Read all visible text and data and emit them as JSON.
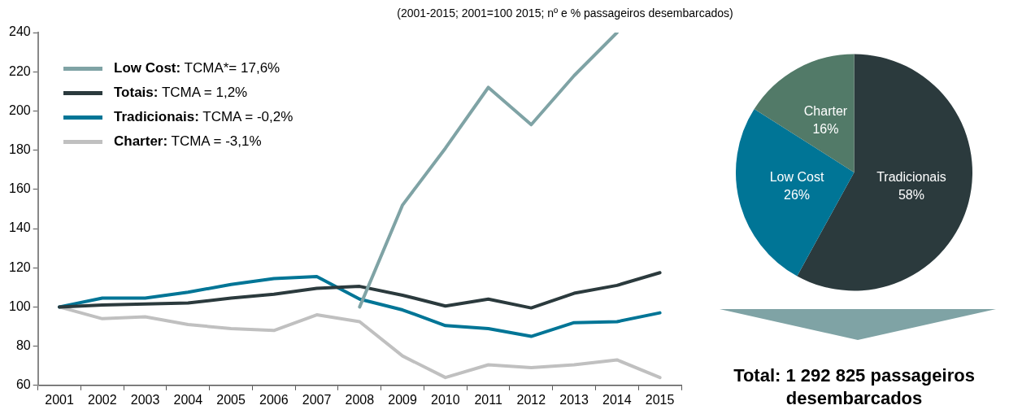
{
  "chart_data": [
    {
      "type": "line",
      "title": "(2001-2015; 2001=100 2015; nº e % passageiros desembarcados)",
      "categories": [
        "2001",
        "2002",
        "2003",
        "2004",
        "2005",
        "2006",
        "2007",
        "2008",
        "2009",
        "2010",
        "2011",
        "2012",
        "2013",
        "2014",
        "2015"
      ],
      "series": [
        {
          "name": "Low Cost: TCMA*= 17,6%",
          "color": "#7fa3a5",
          "values": [
            null,
            null,
            null,
            null,
            null,
            null,
            null,
            100,
            152,
            181,
            212,
            193,
            218,
            240,
            null
          ]
        },
        {
          "name": "Totais: TCMA = 1,2%",
          "color": "#2b3a3d",
          "values": [
            100,
            101,
            101.5,
            102,
            104.5,
            106.5,
            109.5,
            110.5,
            106,
            100.5,
            104,
            99.5,
            107,
            111,
            117.5
          ]
        },
        {
          "name": "Tradicionais: TCMA = -0,2%",
          "color": "#007596",
          "values": [
            100,
            104.5,
            104.5,
            107.5,
            111.5,
            114.5,
            115.5,
            104,
            98.5,
            90.5,
            89,
            85,
            92,
            92.5,
            97
          ]
        },
        {
          "name": "Charter: TCMA = -3,1%",
          "color": "#c0c0c0",
          "values": [
            100,
            94,
            95,
            91,
            89,
            88,
            96,
            92.5,
            75,
            64,
            70.5,
            69,
            70.5,
            73,
            64
          ]
        }
      ],
      "ylim": [
        60,
        240
      ],
      "yticks": [
        60,
        80,
        100,
        120,
        140,
        160,
        180,
        200,
        220,
        240
      ],
      "grid": false,
      "legend": "top left",
      "line_style": "solid",
      "marker": "none"
    },
    {
      "type": "pie",
      "categories": [
        "Tradicionais",
        "Low Cost",
        "Charter"
      ],
      "values": [
        58,
        26,
        16
      ],
      "colors": [
        "#2b3a3d",
        "#007596",
        "#527a68"
      ],
      "value_labels": [
        "58%",
        "26%",
        "16%"
      ],
      "legend": false,
      "annotations": [
        "Total: 1 292 825 passageiros desembarcados"
      ]
    }
  ]
}
